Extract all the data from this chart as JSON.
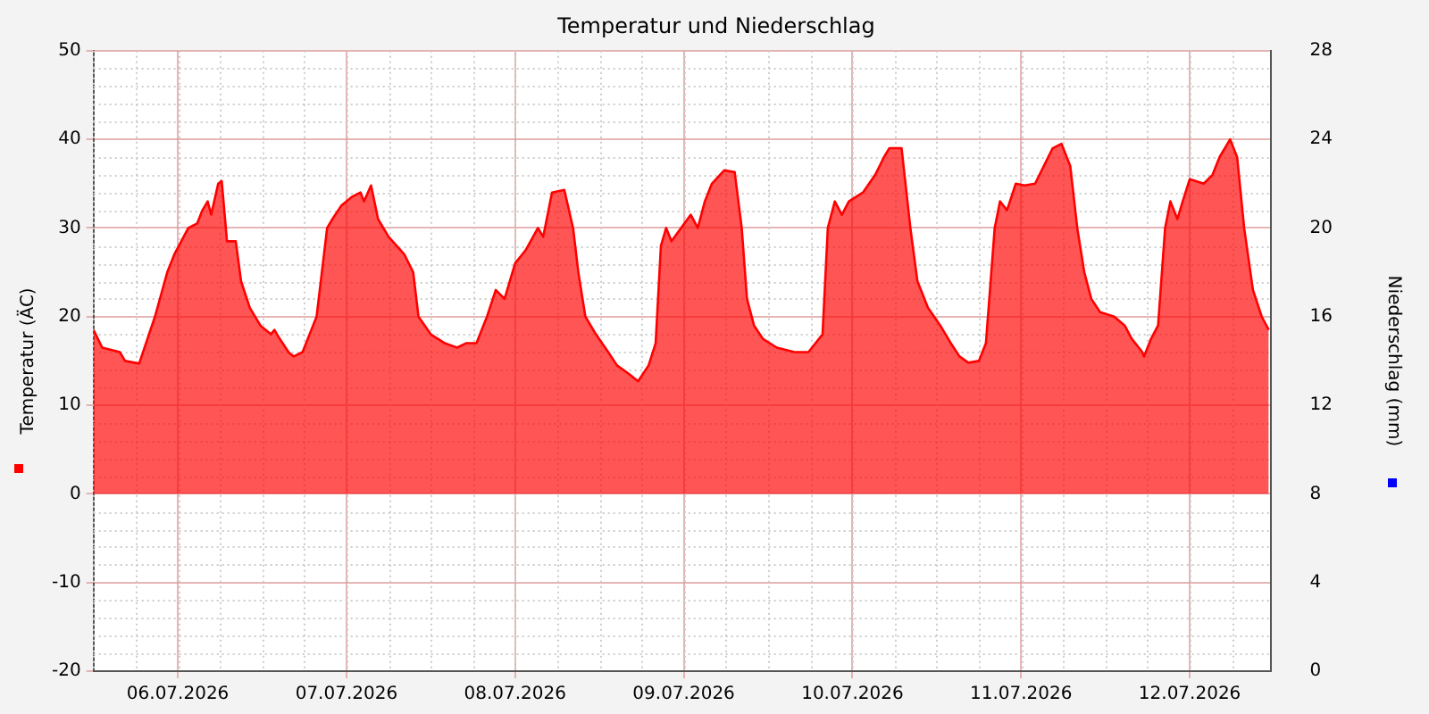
{
  "chart_data": {
    "type": "area",
    "title": "Temperatur und Niederschlag",
    "ylabel": "Temperatur (ÄC)",
    "y2label": "Niederschlag (mm)",
    "x": [
      "2026-07-06T00:00",
      "2026-07-06T01:15",
      "2026-07-06T03:45",
      "2026-07-06T04:30",
      "2026-07-06T06:30",
      "2026-07-06T08:45",
      "2026-07-06T10:30",
      "2026-07-06T11:30",
      "2026-07-06T13:30",
      "2026-07-06T14:45",
      "2026-07-06T15:30",
      "2026-07-06T16:15",
      "2026-07-06T16:45",
      "2026-07-06T17:45",
      "2026-07-06T18:15",
      "2026-07-06T19:00",
      "2026-07-06T20:15",
      "2026-07-06T21:00",
      "2026-07-06T22:15",
      "2026-07-06T23:45",
      "2026-07-07T01:15",
      "2026-07-07T01:45",
      "2026-07-07T02:30",
      "2026-07-07T03:45",
      "2026-07-07T04:30",
      "2026-07-07T05:45",
      "2026-07-07T06:45",
      "2026-07-07T07:45",
      "2026-07-07T08:30",
      "2026-07-07T09:15",
      "2026-07-07T10:00",
      "2026-07-07T11:15",
      "2026-07-07T12:45",
      "2026-07-07T14:00",
      "2026-07-07T14:30",
      "2026-07-07T15:30",
      "2026-07-07T16:30",
      "2026-07-07T18:00",
      "2026-07-07T20:15",
      "2026-07-07T21:30",
      "2026-07-07T22:15",
      "2026-07-08T00:00",
      "2026-07-08T02:00",
      "2026-07-08T03:45",
      "2026-07-08T05:00",
      "2026-07-08T06:30",
      "2026-07-08T08:00",
      "2026-07-08T09:15",
      "2026-07-08T10:30",
      "2026-07-08T12:00",
      "2026-07-08T13:30",
      "2026-07-08T15:15",
      "2026-07-08T16:00",
      "2026-07-08T17:15",
      "2026-07-08T19:00",
      "2026-07-08T20:15",
      "2026-07-08T21:00",
      "2026-07-08T22:00",
      "2026-07-08T23:30",
      "2026-07-09T01:15",
      "2026-07-09T02:30",
      "2026-07-09T04:15",
      "2026-07-09T05:30",
      "2026-07-09T07:00",
      "2026-07-09T08:00",
      "2026-07-09T08:45",
      "2026-07-09T09:30",
      "2026-07-09T10:15",
      "2026-07-09T13:00",
      "2026-07-09T14:00",
      "2026-07-09T15:00",
      "2026-07-09T16:00",
      "2026-07-09T17:45",
      "2026-07-09T19:15",
      "2026-07-09T20:15",
      "2026-07-09T21:00",
      "2026-07-09T22:00",
      "2026-07-09T23:15",
      "2026-07-10T01:15",
      "2026-07-10T03:45",
      "2026-07-10T05:45",
      "2026-07-10T06:45",
      "2026-07-10T07:45",
      "2026-07-10T08:30",
      "2026-07-10T09:30",
      "2026-07-10T10:30",
      "2026-07-10T11:30",
      "2026-07-10T13:30",
      "2026-07-10T15:15",
      "2026-07-10T16:30",
      "2026-07-10T17:15",
      "2026-07-10T19:00",
      "2026-07-10T20:15",
      "2026-07-10T21:15",
      "2026-07-10T22:45",
      "2026-07-11T00:30",
      "2026-07-11T02:00",
      "2026-07-11T03:15",
      "2026-07-11T04:30",
      "2026-07-11T06:00",
      "2026-07-11T07:00",
      "2026-07-11T08:15",
      "2026-07-11T09:00",
      "2026-07-11T10:00",
      "2026-07-11T11:15",
      "2026-07-11T12:30",
      "2026-07-11T14:00",
      "2026-07-11T15:15",
      "2026-07-11T16:30",
      "2026-07-11T17:45",
      "2026-07-11T19:00",
      "2026-07-11T20:00",
      "2026-07-11T21:00",
      "2026-07-11T22:00",
      "2026-07-11T23:15",
      "2026-07-12T01:15",
      "2026-07-12T02:45",
      "2026-07-12T03:45",
      "2026-07-12T05:15",
      "2026-07-12T05:30",
      "2026-07-12T06:30",
      "2026-07-12T07:30",
      "2026-07-12T08:30",
      "2026-07-12T09:15",
      "2026-07-12T10:15",
      "2026-07-12T11:00",
      "2026-07-12T12:00",
      "2026-07-12T14:00",
      "2026-07-12T15:15",
      "2026-07-12T16:15",
      "2026-07-12T17:45",
      "2026-07-12T18:45",
      "2026-07-12T19:45",
      "2026-07-12T21:00",
      "2026-07-12T22:15",
      "2026-07-12T23:15"
    ],
    "series": [
      {
        "color": "#ff0000",
        "values": [
          18.5,
          16.5,
          16,
          15,
          14.7,
          20,
          25,
          27,
          30,
          30.5,
          32,
          33,
          31.5,
          35,
          35.3,
          28.5,
          28.5,
          24,
          21,
          19,
          18,
          18.5,
          17.5,
          16,
          15.5,
          16,
          18,
          20,
          25,
          30,
          31,
          32.5,
          33.5,
          34,
          33,
          34.8,
          31,
          29,
          27,
          25,
          20,
          18,
          17,
          16.5,
          17,
          17,
          20,
          23,
          22,
          26,
          27.5,
          30,
          29,
          34,
          34.3,
          30,
          25,
          20,
          18,
          16,
          14.5,
          13.5,
          12.7,
          14.5,
          17,
          28,
          30,
          28.5,
          31.5,
          30,
          33,
          35,
          36.5,
          36.3,
          30,
          22,
          19,
          17.5,
          16.5,
          16,
          16,
          17,
          18,
          30,
          33,
          31.5,
          33,
          34,
          36,
          38,
          39,
          39,
          30,
          24,
          21,
          19,
          17,
          15.5,
          14.8,
          15,
          17,
          30,
          33,
          32,
          35,
          34.8,
          35,
          37,
          39,
          39.5,
          37,
          30,
          25,
          22,
          20.5,
          20,
          19,
          17.5,
          16,
          15.5,
          17.5,
          19,
          30,
          33,
          31,
          33,
          35.5,
          35,
          36,
          38,
          40,
          38,
          30,
          23,
          20,
          18.5
        ]
      }
    ],
    "xlim": [
      "2026-07-06T00:00",
      "2026-07-12T23:30"
    ],
    "xticks": [
      {
        "value": "2026-07-06T12:00",
        "label": "06.07.2026"
      },
      {
        "value": "2026-07-07T12:00",
        "label": "07.07.2026"
      },
      {
        "value": "2026-07-08T12:00",
        "label": "08.07.2026"
      },
      {
        "value": "2026-07-09T12:00",
        "label": "09.07.2026"
      },
      {
        "value": "2026-07-10T12:00",
        "label": "10.07.2026"
      },
      {
        "value": "2026-07-11T12:00",
        "label": "11.07.2026"
      },
      {
        "value": "2026-07-12T12:00",
        "label": "12.07.2026"
      }
    ],
    "ylim": [
      -20,
      50
    ],
    "yticks": [
      -20,
      -10,
      0,
      10,
      20,
      30,
      40,
      50
    ],
    "y2lim": [
      0,
      28
    ],
    "y2ticks": [
      0,
      4,
      8,
      12,
      16,
      20,
      24,
      28
    ],
    "grid": true,
    "marker": "none",
    "line_style": "solid",
    "legend": false
  }
}
